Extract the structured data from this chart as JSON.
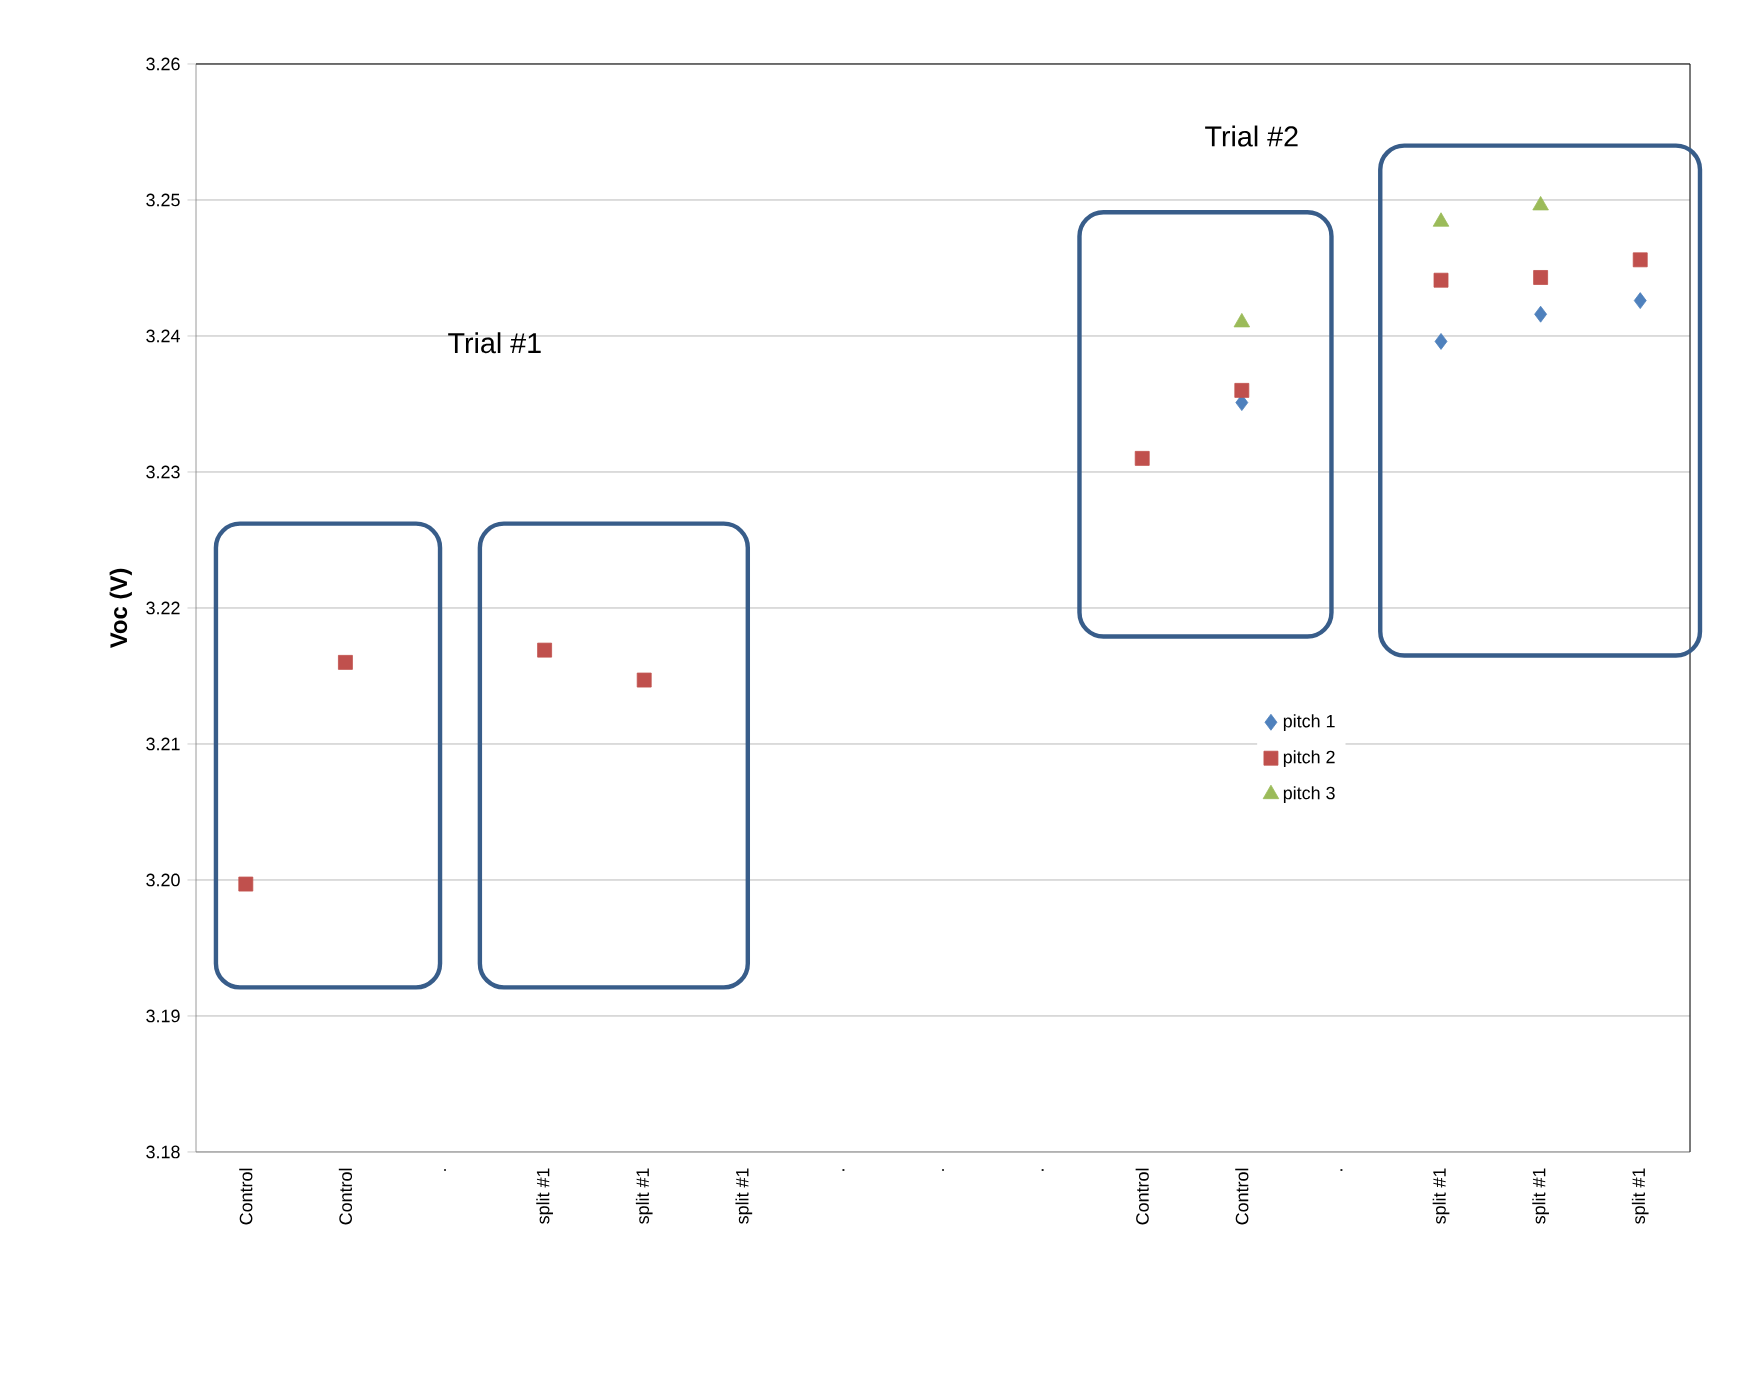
{
  "chart_data": {
    "type": "scatter",
    "ylabel": "Voc (V)",
    "categories": [
      "Control",
      "Control",
      ".",
      "split #1",
      "split #1",
      "split #1",
      ".",
      ".",
      ".",
      "Control",
      "Control",
      ".",
      "split #1",
      "split #1",
      "split #1"
    ],
    "series": [
      {
        "name": "pitch 1",
        "color": "#4f81bd",
        "marker": "diamond",
        "values": [
          null,
          null,
          null,
          null,
          null,
          null,
          null,
          null,
          null,
          null,
          3.2351,
          null,
          3.2396,
          3.2416,
          3.2426
        ]
      },
      {
        "name": "pitch 2",
        "color": "#c0504d",
        "marker": "square",
        "values": [
          3.1997,
          3.216,
          null,
          3.2169,
          3.2147,
          null,
          null,
          null,
          null,
          3.231,
          3.236,
          null,
          3.2441,
          3.2443,
          3.2456
        ]
      },
      {
        "name": "pitch 3",
        "color": "#9bbb59",
        "marker": "triangle",
        "values": [
          null,
          null,
          null,
          null,
          null,
          null,
          null,
          null,
          null,
          null,
          3.241,
          null,
          3.2484,
          3.2496,
          null
        ]
      }
    ],
    "ylim": [
      3.18,
      3.26
    ],
    "yticks": [
      3.18,
      3.19,
      {
        "value": 3.2,
        "label": "3.20"
      },
      3.21,
      3.22,
      3.23,
      3.24,
      3.25,
      3.26
    ],
    "grid": "y",
    "legend": "right",
    "annotations": [
      "Trial #1",
      "Trial #2"
    ]
  }
}
